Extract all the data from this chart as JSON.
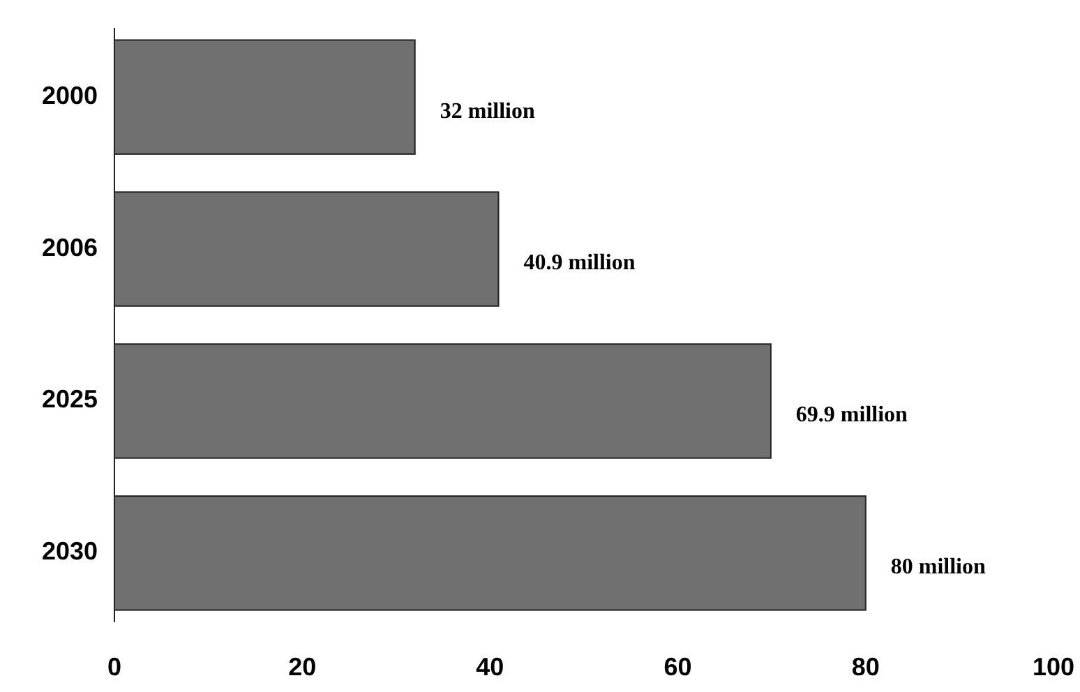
{
  "chart_data": {
    "type": "bar",
    "orientation": "horizontal",
    "categories": [
      "2000",
      "2006",
      "2025",
      "2030"
    ],
    "values": [
      32,
      40.9,
      69.9,
      80
    ],
    "value_labels": [
      "32 million",
      "40.9 million",
      "69.9 million",
      "80 million"
    ],
    "color": "#707070",
    "xlim": [
      0,
      100
    ],
    "xticks": [
      0,
      20,
      40,
      60,
      80,
      100
    ],
    "grid": false
  }
}
